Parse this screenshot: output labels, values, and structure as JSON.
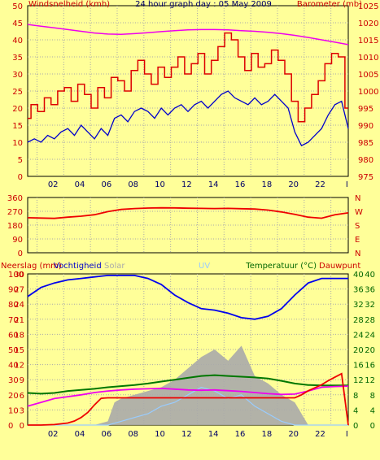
{
  "header": {
    "left_label": "Windsnelheid (kmh)",
    "title": "24 hour graph day : 05 May 2009",
    "right_label": "Barometer (mb)"
  },
  "rain_header": {
    "neerslag": "Neerslag (mm)",
    "vochtigheid": "Vochtigheid",
    "solar": "Solar",
    "uv": "UV",
    "temperatuur": "Temperatuur (°C)",
    "dauwpunt": "Dauwpunt"
  },
  "colors": {
    "background": "#ffff99",
    "wind_gust": "#dd0000",
    "wind_avg": "#0000cc",
    "barometer": "#ee00ee",
    "direction": "#ee0000",
    "humidity": "#0000ee",
    "solar": "#aaaaaa",
    "uv": "#99ccff",
    "temperature": "#007700",
    "dewpoint": "#ee00ee",
    "rain": "#ee0000",
    "axis_red": "#cc0000",
    "axis_green": "#006600"
  },
  "chart_data": [
    {
      "type": "line",
      "name": "wind_barometer",
      "x_ticks": [
        "02",
        "04",
        "06",
        "08",
        "10",
        "12",
        "14",
        "16",
        "18",
        "20",
        "22",
        "I"
      ],
      "y_left_ticks": [
        0,
        5,
        10,
        15,
        20,
        25,
        30,
        35,
        40,
        45,
        50
      ],
      "y_left_range": [
        0,
        50
      ],
      "y_right_ticks": [
        975,
        980,
        985,
        990,
        995,
        1000,
        1005,
        1010,
        1015,
        1020,
        1025
      ],
      "y_right_range": [
        975,
        1025
      ],
      "x_range": [
        0,
        24
      ],
      "series": [
        {
          "name": "Windsnelheid (kmh)",
          "key": "gust",
          "color": "#dd0000",
          "x": [
            0,
            0.5,
            1,
            1.5,
            2,
            2.5,
            3,
            3.5,
            4,
            4.5,
            5,
            5.5,
            6,
            6.5,
            7,
            7.5,
            8,
            8.5,
            9,
            9.5,
            10,
            10.5,
            11,
            11.5,
            12,
            12.5,
            13,
            13.5,
            14,
            14.5,
            15,
            15.5,
            16,
            16.5,
            17,
            17.5,
            18,
            18.5,
            19,
            19.5,
            20,
            20.5,
            21,
            21.5,
            22,
            22.5,
            23,
            23.5,
            24
          ],
          "values": [
            17,
            21,
            19,
            23,
            21,
            25,
            26,
            22,
            27,
            24,
            20,
            26,
            23,
            29,
            28,
            25,
            31,
            34,
            30,
            27,
            32,
            29,
            32,
            35,
            30,
            33,
            36,
            30,
            34,
            38,
            42,
            40,
            35,
            31,
            36,
            32,
            33,
            37,
            34,
            30,
            22,
            16,
            20,
            24,
            28,
            33,
            36,
            35,
            20
          ]
        },
        {
          "name": "wind avg",
          "key": "avg",
          "color": "#0000cc",
          "x": [
            0,
            0.5,
            1,
            1.5,
            2,
            2.5,
            3,
            3.5,
            4,
            4.5,
            5,
            5.5,
            6,
            6.5,
            7,
            7.5,
            8,
            8.5,
            9,
            9.5,
            10,
            10.5,
            11,
            11.5,
            12,
            12.5,
            13,
            13.5,
            14,
            14.5,
            15,
            15.5,
            16,
            16.5,
            17,
            17.5,
            18,
            18.5,
            19,
            19.5,
            20,
            20.5,
            21,
            21.5,
            22,
            22.5,
            23,
            23.5,
            24
          ],
          "values": [
            10,
            11,
            10,
            12,
            11,
            13,
            14,
            12,
            15,
            13,
            11,
            14,
            12,
            17,
            18,
            16,
            19,
            20,
            19,
            17,
            20,
            18,
            20,
            21,
            19,
            21,
            22,
            20,
            22,
            24,
            25,
            23,
            22,
            21,
            23,
            21,
            22,
            24,
            22,
            20,
            13,
            9,
            10,
            12,
            14,
            18,
            21,
            22,
            14
          ]
        },
        {
          "name": "Barometer (mb)",
          "key": "baro",
          "color": "#ee00ee",
          "axis": "right",
          "x": [
            0,
            1,
            2,
            3,
            4,
            5,
            6,
            7,
            8,
            9,
            10,
            11,
            12,
            13,
            14,
            15,
            16,
            17,
            18,
            19,
            20,
            21,
            22,
            23,
            24
          ],
          "values": [
            1019.5,
            1019,
            1018.5,
            1018,
            1017.5,
            1017,
            1016.7,
            1016.6,
            1016.8,
            1017.1,
            1017.4,
            1017.7,
            1017.9,
            1018,
            1018,
            1017.9,
            1017.7,
            1017.5,
            1017.2,
            1016.8,
            1016.3,
            1015.7,
            1015,
            1014.3,
            1013.6
          ]
        }
      ]
    },
    {
      "type": "line",
      "name": "wind_direction",
      "x_range": [
        0,
        24
      ],
      "y_left_ticks": [
        0,
        90,
        180,
        270,
        360
      ],
      "y_range": [
        0,
        360
      ],
      "right_labels": [
        "N",
        "W",
        "S",
        "E",
        "N"
      ],
      "series": [
        {
          "name": "direction",
          "key": "dir",
          "color": "#ee0000",
          "x": [
            0,
            1,
            2,
            3,
            4,
            5,
            6,
            7,
            8,
            9,
            10,
            11,
            12,
            13,
            14,
            15,
            16,
            17,
            18,
            19,
            20,
            21,
            22,
            23,
            24
          ],
          "values": [
            228,
            226,
            224,
            232,
            238,
            248,
            268,
            282,
            288,
            291,
            293,
            292,
            290,
            289,
            288,
            289,
            287,
            285,
            278,
            266,
            250,
            232,
            225,
            248,
            260
          ]
        }
      ]
    },
    {
      "type": "line",
      "name": "rain_humidity_temp",
      "x_range": [
        0,
        24
      ],
      "y_humidity_ticks": [
        0,
        10,
        20,
        30,
        40,
        50,
        60,
        70,
        80,
        90,
        100
      ],
      "y_rain_ticks": [
        0,
        3,
        6,
        9,
        12,
        15,
        18,
        21,
        24,
        27,
        30
      ],
      "y_temp_ticks": [
        0,
        4,
        8,
        12,
        16,
        20,
        24,
        28,
        32,
        36,
        40
      ],
      "y_temp_right_ticks": [
        0,
        4,
        8,
        12,
        16,
        20,
        24,
        28,
        32,
        36,
        40
      ],
      "series": [
        {
          "name": "Vochtigheid",
          "key": "hum",
          "color": "#0000ee",
          "axis": "humidity",
          "x": [
            0,
            1,
            2,
            3,
            4,
            5,
            6,
            7,
            8,
            9,
            10,
            11,
            12,
            13,
            14,
            15,
            16,
            17,
            18,
            19,
            20,
            21,
            22,
            23,
            24
          ],
          "values": [
            85,
            91,
            94,
            96,
            97,
            98,
            99,
            99,
            99,
            97,
            93,
            86,
            81,
            77,
            76,
            74,
            71,
            70,
            72,
            77,
            86,
            94,
            97,
            97,
            97
          ]
        },
        {
          "name": "Solar",
          "key": "solar",
          "color": "#aaaaaa",
          "axis": "temp",
          "x": [
            0,
            4,
            5,
            6,
            6.5,
            7,
            8,
            9,
            10,
            11,
            12,
            13,
            14,
            15,
            16,
            17,
            18,
            19,
            20,
            21,
            24
          ],
          "values": [
            0,
            0,
            0,
            1,
            6,
            7,
            8,
            9,
            10,
            12,
            15,
            18,
            20,
            17,
            21,
            13,
            11,
            8,
            6,
            0,
            0
          ]
        },
        {
          "name": "UV",
          "key": "uv",
          "color": "#99ccff",
          "axis": "temp",
          "x": [
            0,
            6,
            7,
            8,
            9,
            10,
            11,
            12,
            13,
            14,
            15,
            16,
            17,
            18,
            19,
            20,
            24
          ],
          "values": [
            0,
            0,
            1,
            2,
            3,
            5,
            6,
            8,
            10,
            9,
            7,
            8,
            5,
            3,
            1,
            0,
            0
          ]
        },
        {
          "name": "Temperatuur (°C)",
          "key": "temp",
          "color": "#007700",
          "axis": "temp",
          "x": [
            0,
            1,
            2,
            3,
            4,
            5,
            6,
            7,
            8,
            9,
            10,
            11,
            12,
            13,
            14,
            15,
            16,
            17,
            18,
            19,
            20,
            21,
            22,
            23,
            24
          ],
          "values": [
            8.5,
            8.3,
            8.5,
            9,
            9.3,
            9.6,
            10,
            10.3,
            10.6,
            11,
            11.5,
            12,
            12.5,
            13,
            13.2,
            13,
            12.8,
            12.6,
            12.3,
            11.7,
            11,
            10.6,
            10.5,
            10.5,
            10.5
          ]
        },
        {
          "name": "Dauwpunt",
          "key": "dew",
          "color": "#ee00ee",
          "axis": "temp",
          "x": [
            0,
            1,
            2,
            3,
            4,
            5,
            6,
            7,
            8,
            9,
            10,
            11,
            12,
            13,
            14,
            15,
            16,
            17,
            18,
            19,
            20,
            21,
            22,
            23,
            24
          ],
          "values": [
            5,
            6,
            7,
            7.5,
            8,
            8.6,
            9,
            9.3,
            9.5,
            9.6,
            9.7,
            9.5,
            9.3,
            9.2,
            9.3,
            9.1,
            8.9,
            8.6,
            8.3,
            8.1,
            8.2,
            9,
            10,
            10.2,
            10.3
          ]
        },
        {
          "name": "Neerslag (mm)",
          "key": "rain",
          "color": "#ee0000",
          "axis": "rain",
          "x": [
            0,
            1,
            2,
            3,
            3.5,
            4,
            4.5,
            5,
            5.5,
            6,
            7,
            8,
            9,
            10,
            11,
            12,
            13,
            14,
            15,
            16,
            17,
            18,
            19,
            20,
            20.5,
            21,
            22,
            22.5,
            23,
            23.5,
            24
          ],
          "values": [
            0,
            0,
            0.1,
            0.4,
            0.8,
            1.5,
            2.5,
            4,
            5.3,
            5.4,
            5.4,
            5.4,
            5.4,
            5.4,
            5.4,
            5.4,
            5.4,
            5.4,
            5.4,
            5.4,
            5.4,
            5.4,
            5.4,
            5.4,
            6,
            6.8,
            8,
            8.8,
            9.5,
            10.2,
            0
          ]
        }
      ]
    }
  ]
}
